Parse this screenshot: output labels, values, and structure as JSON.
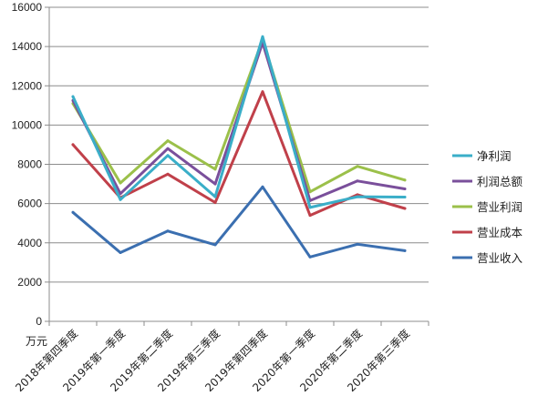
{
  "chart_data": {
    "type": "line",
    "title": "",
    "xlabel": "",
    "ylabel": "万元",
    "ylim": [
      0,
      16000
    ],
    "yticks": [
      0,
      2000,
      4000,
      6000,
      8000,
      10000,
      12000,
      14000,
      16000
    ],
    "grid": true,
    "legend": "right",
    "categories": [
      "2018年第四季度",
      "2019年第一季度",
      "2019年第二季度",
      "2019年第三季度",
      "2019年第四季度",
      "2020年第一季度",
      "2020年第二季度",
      "2020年第三季度"
    ],
    "series": [
      {
        "name": "营业收入",
        "color": "#3b6fb0",
        "values": [
          5550,
          3500,
          4600,
          3900,
          6850,
          3280,
          3930,
          3600
        ]
      },
      {
        "name": "营业成本",
        "color": "#c0404a",
        "values": [
          9000,
          6300,
          7500,
          6050,
          11700,
          5400,
          6450,
          5750
        ]
      },
      {
        "name": "营业利润",
        "color": "#9bc04a",
        "values": [
          11100,
          7050,
          9200,
          7750,
          14350,
          6600,
          7900,
          7200
        ]
      },
      {
        "name": "利润总额",
        "color": "#7a4f9b",
        "values": [
          11250,
          6500,
          8800,
          7000,
          14200,
          6150,
          7150,
          6750
        ]
      },
      {
        "name": "净利润",
        "color": "#3aaec8",
        "values": [
          11450,
          6200,
          8450,
          6350,
          14500,
          5800,
          6350,
          6330
        ]
      }
    ],
    "legend_order": [
      "净利润",
      "利润总额",
      "营业利润",
      "营业成本",
      "营业收入"
    ]
  }
}
